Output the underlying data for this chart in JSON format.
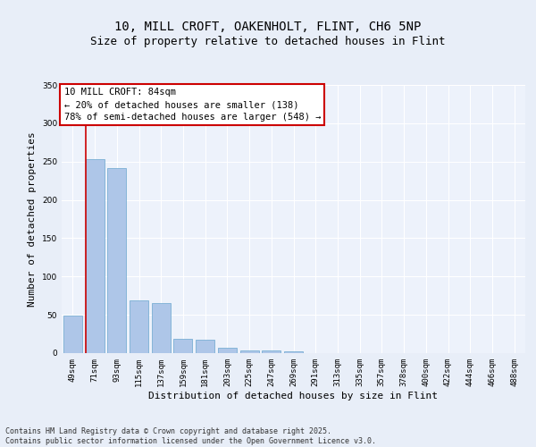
{
  "title_line1": "10, MILL CROFT, OAKENHOLT, FLINT, CH6 5NP",
  "title_line2": "Size of property relative to detached houses in Flint",
  "xlabel": "Distribution of detached houses by size in Flint",
  "ylabel": "Number of detached properties",
  "categories": [
    "49sqm",
    "71sqm",
    "93sqm",
    "115sqm",
    "137sqm",
    "159sqm",
    "181sqm",
    "203sqm",
    "225sqm",
    "247sqm",
    "269sqm",
    "291sqm",
    "313sqm",
    "335sqm",
    "357sqm",
    "378sqm",
    "400sqm",
    "422sqm",
    "444sqm",
    "466sqm",
    "488sqm"
  ],
  "values": [
    49,
    253,
    241,
    69,
    65,
    19,
    18,
    7,
    4,
    3,
    2,
    0,
    0,
    0,
    0,
    0,
    0,
    0,
    0,
    0,
    0
  ],
  "bar_color": "#aec6e8",
  "bar_edge_color": "#7aafd4",
  "vline_color": "#cc0000",
  "ylim": [
    0,
    350
  ],
  "yticks": [
    0,
    50,
    100,
    150,
    200,
    250,
    300,
    350
  ],
  "annotation_text": "10 MILL CROFT: 84sqm\n← 20% of detached houses are smaller (138)\n78% of semi-detached houses are larger (548) →",
  "annotation_box_color": "#ffffff",
  "annotation_border_color": "#cc0000",
  "bg_color": "#e8eef8",
  "plot_bg_color": "#edf2fb",
  "footer_text": "Contains HM Land Registry data © Crown copyright and database right 2025.\nContains public sector information licensed under the Open Government Licence v3.0.",
  "title_fontsize": 10,
  "subtitle_fontsize": 9,
  "axis_label_fontsize": 8,
  "tick_fontsize": 6.5,
  "annotation_fontsize": 7.5,
  "footer_fontsize": 6
}
